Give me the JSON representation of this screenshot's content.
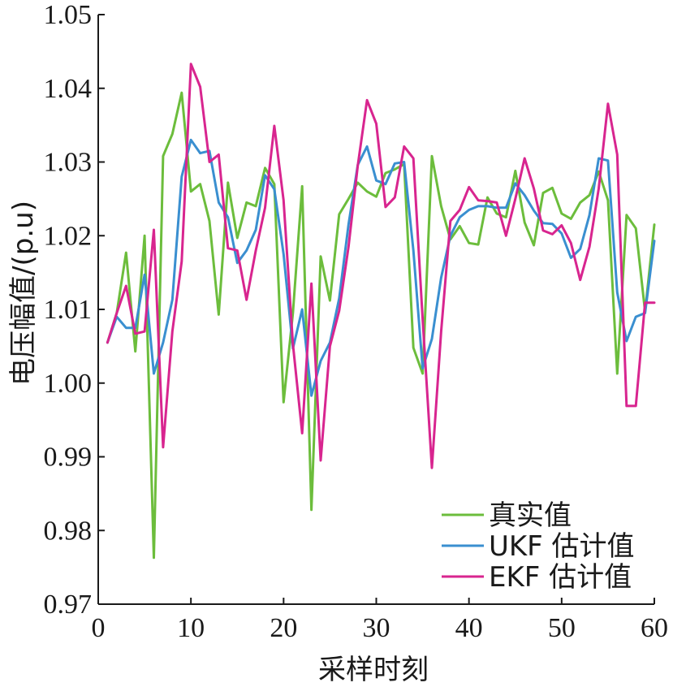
{
  "chart_data": {
    "type": "line",
    "title": "",
    "xlabel": "采样时刻",
    "ylabel": "电压幅值/(p.u)",
    "xlim": [
      0,
      60
    ],
    "ylim": [
      0.97,
      1.05
    ],
    "xticks": [
      0,
      10,
      20,
      30,
      40,
      50,
      60
    ],
    "xtick_labels": [
      "0",
      "10",
      "20",
      "30",
      "40",
      "50",
      "60"
    ],
    "yticks": [
      0.97,
      0.98,
      0.99,
      1.0,
      1.01,
      1.02,
      1.03,
      1.04,
      1.05
    ],
    "ytick_labels": [
      "0.97",
      "0.98",
      "0.99",
      "1.00",
      "1.01",
      "1.02",
      "1.03",
      "1.04",
      "1.05"
    ],
    "grid": false,
    "legend_position": "bottom-right",
    "x": [
      1,
      2,
      3,
      4,
      5,
      6,
      7,
      8,
      9,
      10,
      11,
      12,
      13,
      14,
      15,
      16,
      17,
      18,
      19,
      20,
      21,
      22,
      23,
      24,
      25,
      26,
      27,
      28,
      29,
      30,
      31,
      32,
      33,
      34,
      35,
      36,
      37,
      38,
      39,
      40,
      41,
      42,
      43,
      44,
      45,
      46,
      47,
      48,
      49,
      50,
      51,
      52,
      53,
      54,
      55,
      56,
      57,
      58,
      59,
      60
    ],
    "series": [
      {
        "name": "真实值",
        "color": "#6cbd3c",
        "values": [
          1.0055,
          1.0095,
          1.0177,
          1.0043,
          1.02,
          0.9763,
          1.0308,
          1.0338,
          1.0394,
          1.026,
          1.027,
          1.022,
          1.0093,
          1.0272,
          1.0197,
          1.0245,
          1.024,
          1.0292,
          1.027,
          0.9974,
          1.0095,
          1.0267,
          0.9828,
          1.0172,
          1.0112,
          1.0229,
          1.025,
          1.0272,
          1.026,
          1.0253,
          1.0285,
          1.029,
          1.0297,
          1.0048,
          1.0013,
          1.0308,
          1.024,
          1.0195,
          1.0213,
          1.019,
          1.0188,
          1.0252,
          1.023,
          1.0225,
          1.0288,
          1.0218,
          1.0187,
          1.0258,
          1.0265,
          1.023,
          1.0223,
          1.0245,
          1.0255,
          1.0287,
          1.0248,
          1.0013,
          1.0228,
          1.021,
          1.0097,
          1.0215
        ]
      },
      {
        "name": "UKF 估计值",
        "color": "#3a8fd0",
        "values": [
          1.0055,
          1.009,
          1.0075,
          1.0075,
          1.0147,
          1.0013,
          1.0055,
          1.0113,
          1.028,
          1.033,
          1.0312,
          1.0315,
          1.0245,
          1.0225,
          1.0163,
          1.018,
          1.0208,
          1.0282,
          1.0263,
          1.0175,
          1.0047,
          1.01,
          0.9983,
          1.003,
          1.0055,
          1.0115,
          1.0215,
          1.0296,
          1.0321,
          1.0275,
          1.027,
          1.0298,
          1.03,
          1.018,
          1.002,
          1.006,
          1.0143,
          1.02,
          1.0225,
          1.0235,
          1.024,
          1.024,
          1.0238,
          1.0238,
          1.0271,
          1.0255,
          1.0234,
          1.0217,
          1.0216,
          1.0203,
          1.017,
          1.0182,
          1.0228,
          1.0305,
          1.0302,
          1.0123,
          1.0057,
          1.009,
          1.0095,
          1.0193
        ]
      },
      {
        "name": "EKF 估计值",
        "color": "#d8258f",
        "values": [
          1.0055,
          1.0095,
          1.0132,
          1.0067,
          1.007,
          1.0208,
          0.9913,
          1.007,
          1.0165,
          1.0433,
          1.0402,
          1.03,
          1.031,
          1.0183,
          1.018,
          1.0113,
          1.018,
          1.0238,
          1.0349,
          1.0248,
          1.0053,
          0.9932,
          1.0135,
          0.9895,
          1.005,
          1.0098,
          1.0185,
          1.0295,
          1.0384,
          1.0352,
          1.0239,
          1.0252,
          1.0321,
          1.0305,
          1.0087,
          0.9885,
          1.007,
          1.022,
          1.0235,
          1.0266,
          1.0248,
          1.0247,
          1.0245,
          1.02,
          1.025,
          1.0305,
          1.0264,
          1.0207,
          1.0202,
          1.0214,
          1.019,
          1.014,
          1.0185,
          1.0264,
          1.0379,
          1.031,
          0.9969,
          0.9969,
          1.0109,
          1.0109
        ]
      }
    ]
  }
}
